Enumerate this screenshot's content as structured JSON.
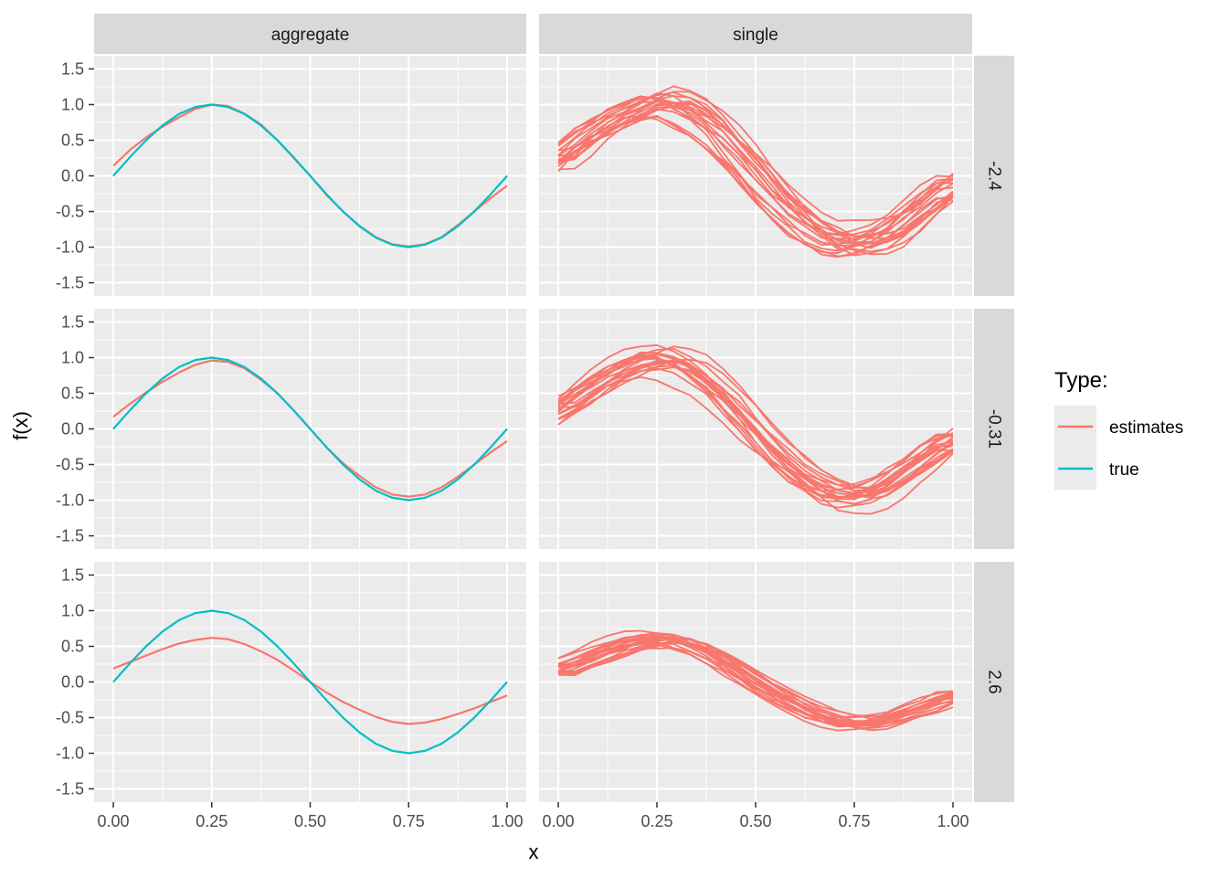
{
  "chart_data": {
    "type": "line",
    "facet_type": "grid",
    "xlabel": "x",
    "ylabel": "f(x)",
    "xlim": [
      0,
      1
    ],
    "ylim": [
      -1.5,
      1.5
    ],
    "x_ticks": [
      "0.00",
      "0.25",
      "0.50",
      "0.75",
      "1.00"
    ],
    "y_ticks": [
      "-1.5",
      "-1.0",
      "-0.5",
      "0.0",
      "0.5",
      "1.0",
      "1.5"
    ],
    "grid": true,
    "col_facets": [
      "aggregate",
      "single"
    ],
    "row_facets": [
      "-2.4",
      "-0.31",
      "2.6"
    ],
    "legend": {
      "title": "Type:",
      "position": "right",
      "entries": [
        {
          "label": "estimates",
          "color": "#F8766D"
        },
        {
          "label": "true",
          "color": "#00BFC4"
        }
      ]
    },
    "colors": {
      "estimates": "#F8766D",
      "true": "#00BFC4",
      "panel_bg": "#EBEBEB",
      "strip_bg": "#D9D9D9"
    },
    "x": [
      0.0,
      0.0417,
      0.0833,
      0.125,
      0.1667,
      0.2083,
      0.25,
      0.2917,
      0.3333,
      0.375,
      0.4167,
      0.4583,
      0.5,
      0.5417,
      0.5833,
      0.625,
      0.6667,
      0.7083,
      0.75,
      0.7917,
      0.8333,
      0.875,
      0.9167,
      0.9583,
      1.0
    ],
    "true_function": {
      "name": "true",
      "values": [
        0.0,
        0.259,
        0.5,
        0.707,
        0.866,
        0.966,
        1.0,
        0.966,
        0.866,
        0.707,
        0.5,
        0.259,
        0.0,
        -0.259,
        -0.5,
        -0.707,
        -0.866,
        -0.966,
        -1.0,
        -0.966,
        -0.866,
        -0.707,
        -0.5,
        -0.259,
        0.0
      ]
    },
    "aggregate_estimates": [
      {
        "row": "-2.4",
        "name": "estimates",
        "values": [
          0.14,
          0.36,
          0.54,
          0.69,
          0.82,
          0.94,
          1.0,
          0.98,
          0.87,
          0.72,
          0.5,
          0.25,
          0.0,
          -0.27,
          -0.5,
          -0.7,
          -0.86,
          -0.96,
          -0.99,
          -0.96,
          -0.86,
          -0.69,
          -0.5,
          -0.31,
          -0.14
        ]
      },
      {
        "row": "-0.31",
        "name": "estimates",
        "values": [
          0.17,
          0.35,
          0.51,
          0.66,
          0.79,
          0.9,
          0.96,
          0.94,
          0.85,
          0.69,
          0.5,
          0.26,
          0.0,
          -0.26,
          -0.48,
          -0.66,
          -0.82,
          -0.92,
          -0.95,
          -0.92,
          -0.82,
          -0.67,
          -0.5,
          -0.33,
          -0.17
        ]
      },
      {
        "row": "2.6",
        "name": "estimates",
        "values": [
          0.19,
          0.28,
          0.37,
          0.46,
          0.54,
          0.59,
          0.62,
          0.6,
          0.53,
          0.43,
          0.31,
          0.16,
          0.0,
          -0.15,
          -0.28,
          -0.39,
          -0.49,
          -0.56,
          -0.59,
          -0.57,
          -0.52,
          -0.45,
          -0.37,
          -0.28,
          -0.19
        ]
      }
    ],
    "single_estimates": [
      {
        "row": "-2.4",
        "name": "estimates",
        "count": 20,
        "spread": 0.3,
        "values": [
          0.14,
          0.36,
          0.54,
          0.69,
          0.82,
          0.94,
          1.0,
          0.98,
          0.87,
          0.72,
          0.5,
          0.25,
          0.0,
          -0.27,
          -0.5,
          -0.7,
          -0.86,
          -0.96,
          -0.99,
          -0.96,
          -0.86,
          -0.69,
          -0.5,
          -0.31,
          -0.14
        ]
      },
      {
        "row": "-0.31",
        "name": "estimates",
        "count": 20,
        "spread": 0.25,
        "values": [
          0.17,
          0.35,
          0.51,
          0.66,
          0.79,
          0.9,
          0.96,
          0.94,
          0.85,
          0.69,
          0.5,
          0.26,
          0.0,
          -0.26,
          -0.48,
          -0.66,
          -0.82,
          -0.92,
          -0.95,
          -0.92,
          -0.82,
          -0.67,
          -0.5,
          -0.33,
          -0.17
        ]
      },
      {
        "row": "2.6",
        "name": "estimates",
        "count": 20,
        "spread": 0.15,
        "values": [
          0.19,
          0.28,
          0.37,
          0.46,
          0.54,
          0.59,
          0.62,
          0.6,
          0.53,
          0.43,
          0.31,
          0.16,
          0.0,
          -0.15,
          -0.28,
          -0.39,
          -0.49,
          -0.56,
          -0.59,
          -0.57,
          -0.52,
          -0.45,
          -0.37,
          -0.28,
          -0.19
        ]
      }
    ]
  }
}
